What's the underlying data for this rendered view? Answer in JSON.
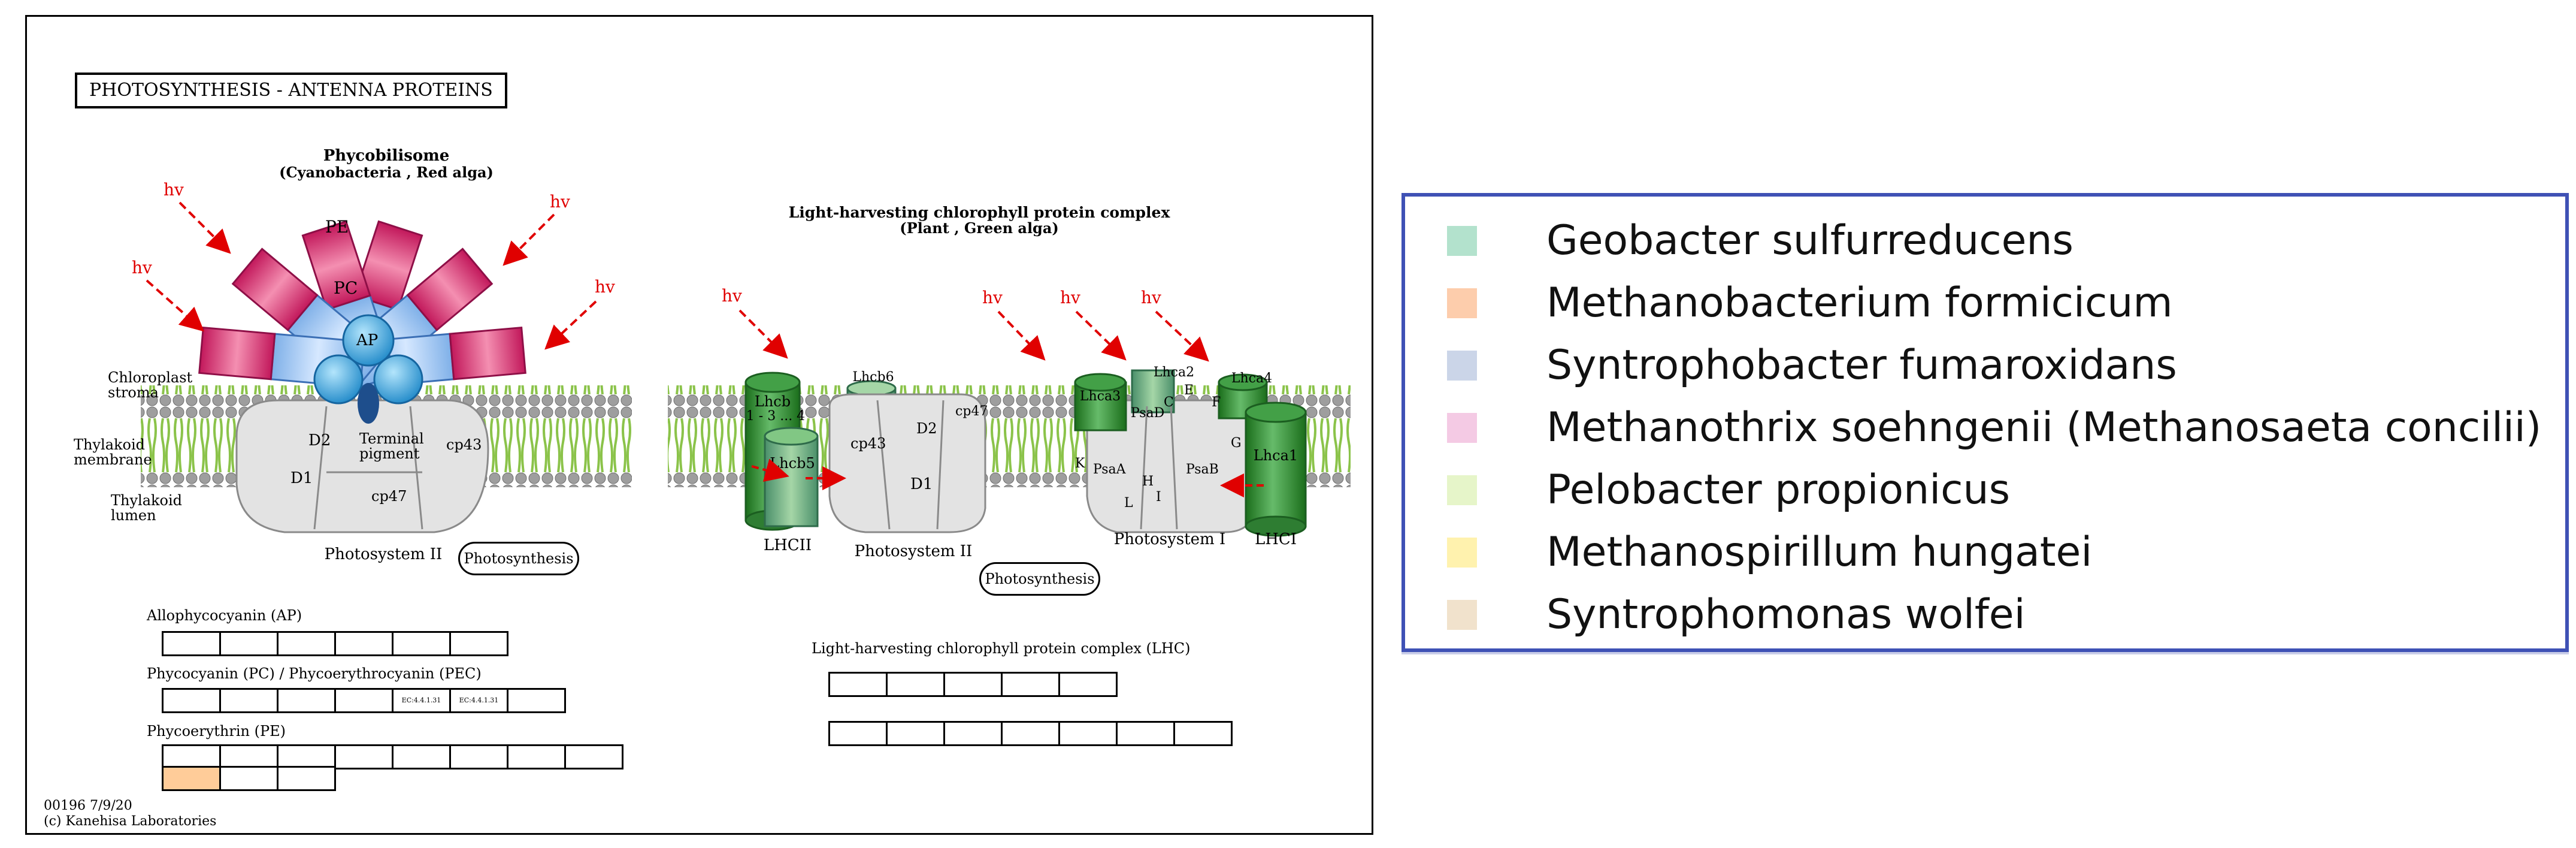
{
  "map_title": "PHOTOSYNTHESIS - ANTENNA PROTEINS",
  "phycobilisome": {
    "title": "Phycobilisome",
    "subtitle": "(Cyanobacteria , Red alga)",
    "pe_label": "PE",
    "pc_label": "PC",
    "ap_label": "AP",
    "hv": "hv"
  },
  "membrane_labels": {
    "stroma": [
      "Chloroplast",
      "stroma"
    ],
    "membrane": [
      "Thylakoid",
      "membrane"
    ],
    "lumen": [
      "Thylakoid",
      "lumen"
    ]
  },
  "psii_left": {
    "d2": "D2",
    "d1": "D1",
    "terminal": [
      "Terminal",
      "pigment"
    ],
    "cp43": "cp43",
    "cp47": "cp47",
    "label": "Photosystem II"
  },
  "lhc": {
    "title": "Light-harvesting chlorophyll protein complex",
    "subtitle": "(Plant , Green alga)",
    "lhcb": [
      "Lhcb",
      "1 - 3 ... 4"
    ],
    "lhcb6": "Lhcb6",
    "lhcb5": "Lhcb5",
    "lhcii": "LHCII",
    "cp43": "cp43",
    "d2": "D2",
    "d1": "D1",
    "cp47": "cp47",
    "psii": "Photosystem II",
    "lhca3": "Lhca3",
    "lhca2": "Lhca2",
    "lhca4": "Lhca4",
    "lhca1": "Lhca1",
    "psad": "PsaD",
    "c": "C",
    "e": "E",
    "f": "F",
    "k": "K",
    "psaa": "PsaA",
    "h": "H",
    "psab": "PsaB",
    "g": "G",
    "l": "L",
    "i": "I",
    "psi": "Photosystem I",
    "lhci": "LHCI"
  },
  "buttons": {
    "photosynthesis_left": "Photosynthesis",
    "photosynthesis_right": "Photosynthesis"
  },
  "gene_groups": {
    "ap": {
      "label": "Allophycocyanin (AP)",
      "rows": [
        [
          "",
          "",
          "",
          "",
          "",
          ""
        ]
      ]
    },
    "pc": {
      "label": "Phycocyanin (PC) / Phycoerythrocyanin (PEC)",
      "rows": [
        [
          "",
          "",
          "",
          "",
          "EC:4.4.1.31",
          "EC:4.4.1.31",
          ""
        ]
      ]
    },
    "pe": {
      "label": "Phycoerythrin (PE)",
      "rows": [
        [
          "",
          "",
          "",
          "",
          "",
          "",
          "",
          ""
        ],
        [
          "",
          "",
          ""
        ]
      ],
      "highlight": {
        "row": 1,
        "col": 0,
        "color": "#ffcc99"
      }
    },
    "lhc": {
      "label": "Light-harvesting chlorophyll protein complex (LHC)",
      "rows": [
        [
          "",
          "",
          "",
          "",
          ""
        ],
        [
          "",
          "",
          "",
          "",
          "",
          "",
          ""
        ]
      ]
    }
  },
  "footer": {
    "id": "00196 7/9/20",
    "copyright": "(c) Kanehisa Laboratories"
  },
  "legend": [
    {
      "name": "Geobacter sulfurreducens",
      "color": "#b3e2cd"
    },
    {
      "name": "Methanobacterium formicicum",
      "color": "#fdcdac"
    },
    {
      "name": "Syntrophobacter fumaroxidans",
      "color": "#cbd5e8"
    },
    {
      "name": "Methanothrix soehngenii (Methanosaeta concilii)",
      "color": "#f4cae4"
    },
    {
      "name": "Pelobacter propionicus",
      "color": "#e6f5c9"
    },
    {
      "name": "Methanospirillum hungatei",
      "color": "#fff2ae"
    },
    {
      "name": "Syntrophomonas wolfei",
      "color": "#f1e2cc"
    }
  ]
}
